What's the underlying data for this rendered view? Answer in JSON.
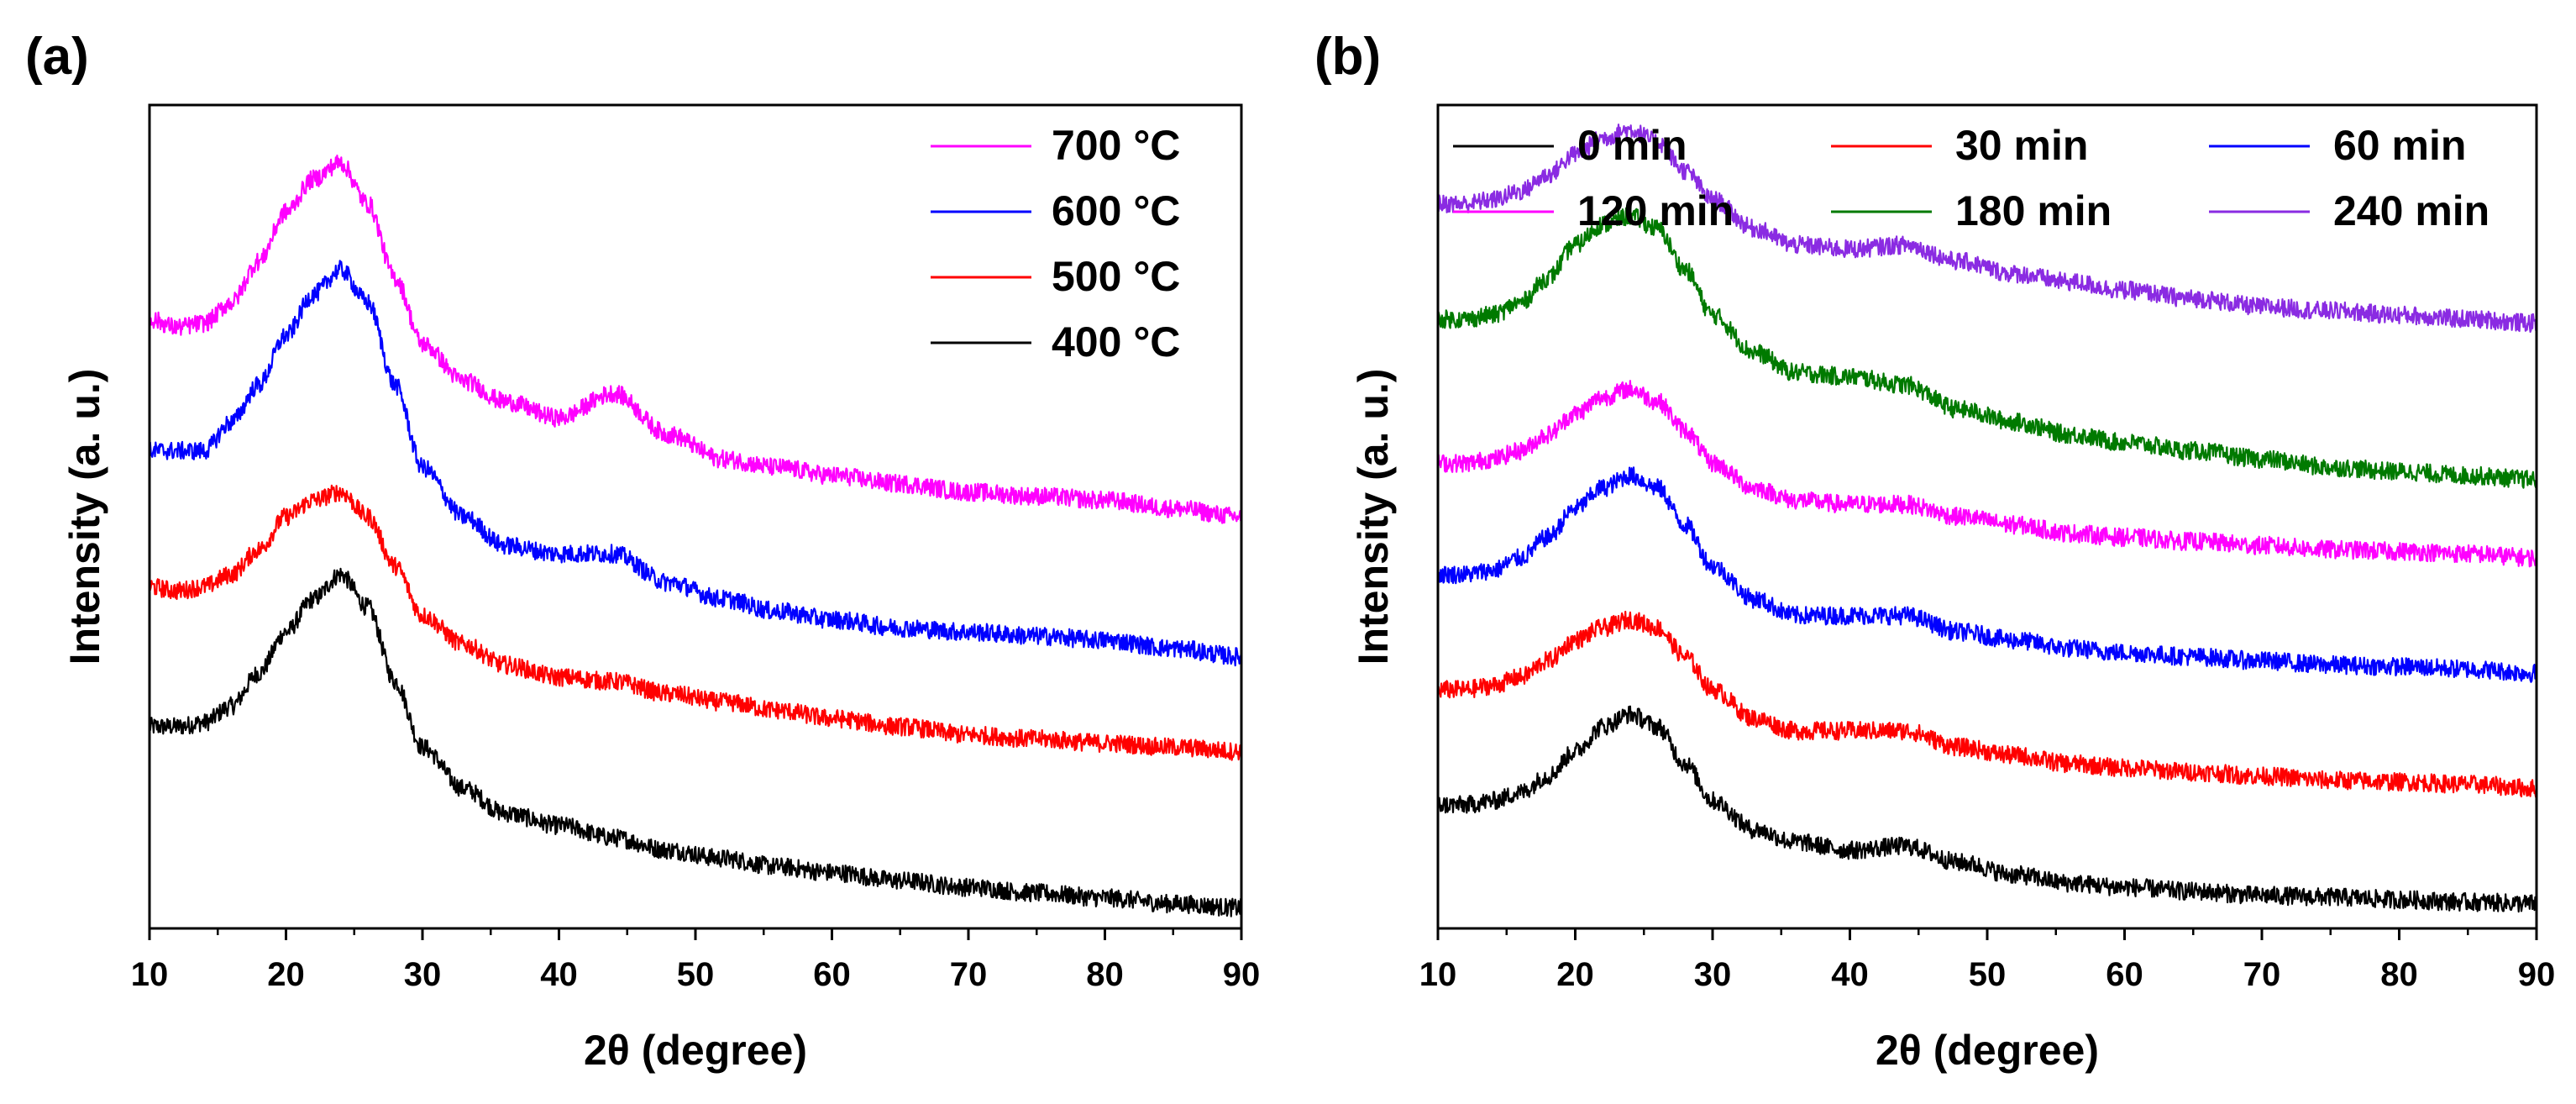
{
  "chart_data": [
    {
      "panel_label": "(a)",
      "type": "line",
      "title": "",
      "xlabel": "2θ (degree)",
      "ylabel": "Intensity (a. u.)",
      "xlim": [
        10,
        90
      ],
      "ylim": [
        0,
        1
      ],
      "xticks": [
        "10",
        "20",
        "30",
        "40",
        "50",
        "60",
        "70",
        "80",
        "90"
      ],
      "yticks_visible": false,
      "grid": false,
      "legend": {
        "placement": "top-right",
        "columns": 1,
        "order": [
          "700 °C",
          "600 °C",
          "500 °C",
          "400 °C"
        ]
      },
      "series": [
        {
          "name": "400 °C",
          "color": "#000000",
          "x": [
            10,
            12,
            14,
            16,
            18,
            20,
            22,
            24,
            26,
            28,
            30,
            33,
            36,
            40,
            44,
            48,
            52,
            56,
            60,
            65,
            70,
            75,
            80,
            85,
            90
          ],
          "y": [
            0.245,
            0.245,
            0.25,
            0.27,
            0.31,
            0.36,
            0.4,
            0.43,
            0.39,
            0.3,
            0.22,
            0.17,
            0.14,
            0.125,
            0.11,
            0.095,
            0.085,
            0.075,
            0.068,
            0.058,
            0.05,
            0.043,
            0.037,
            0.03,
            0.025
          ]
        },
        {
          "name": "500 °C",
          "color": "#ff0000",
          "x": [
            10,
            12,
            14,
            16,
            18,
            20,
            22,
            24,
            26,
            28,
            30,
            33,
            36,
            40,
            44,
            48,
            52,
            56,
            60,
            65,
            70,
            75,
            80,
            85,
            90
          ],
          "y": [
            0.415,
            0.41,
            0.415,
            0.43,
            0.46,
            0.5,
            0.52,
            0.53,
            0.5,
            0.44,
            0.38,
            0.345,
            0.32,
            0.305,
            0.3,
            0.285,
            0.275,
            0.265,
            0.255,
            0.245,
            0.235,
            0.23,
            0.225,
            0.22,
            0.215
          ]
        },
        {
          "name": "600 °C",
          "color": "#0000ff",
          "x": [
            10,
            12,
            14,
            16,
            18,
            20,
            22,
            24,
            26,
            28,
            30,
            33,
            36,
            40,
            44,
            48,
            52,
            56,
            60,
            65,
            70,
            75,
            80,
            85,
            90
          ],
          "y": [
            0.58,
            0.58,
            0.58,
            0.615,
            0.66,
            0.72,
            0.77,
            0.8,
            0.76,
            0.66,
            0.56,
            0.5,
            0.465,
            0.455,
            0.455,
            0.42,
            0.4,
            0.385,
            0.375,
            0.365,
            0.36,
            0.355,
            0.35,
            0.34,
            0.33
          ]
        },
        {
          "name": "700 °C",
          "color": "#ff00ff",
          "x": [
            10,
            12,
            14,
            16,
            18,
            20,
            22,
            24,
            26,
            28,
            30,
            33,
            36,
            40,
            44,
            48,
            52,
            56,
            60,
            65,
            70,
            75,
            80,
            85,
            90
          ],
          "y": [
            0.74,
            0.73,
            0.735,
            0.76,
            0.81,
            0.87,
            0.91,
            0.93,
            0.88,
            0.79,
            0.71,
            0.665,
            0.64,
            0.62,
            0.65,
            0.6,
            0.57,
            0.56,
            0.55,
            0.54,
            0.53,
            0.525,
            0.52,
            0.51,
            0.5
          ]
        }
      ]
    },
    {
      "panel_label": "(b)",
      "type": "line",
      "title": "",
      "xlabel": "2θ (degree)",
      "ylabel": "Intensity (a. u.)",
      "xlim": [
        10,
        90
      ],
      "ylim": [
        0,
        1
      ],
      "xticks": [
        "10",
        "20",
        "30",
        "40",
        "50",
        "60",
        "70",
        "80",
        "90"
      ],
      "yticks_visible": false,
      "grid": false,
      "legend": {
        "placement": "top",
        "columns": 3,
        "order": [
          "0 min",
          "30 min",
          "60 min",
          "120 min",
          "180 min",
          "240 min"
        ]
      },
      "series": [
        {
          "name": "0 min",
          "color": "#000000",
          "x": [
            10,
            12,
            14,
            16,
            18,
            20,
            22,
            24,
            26,
            28,
            30,
            33,
            36,
            40,
            44,
            48,
            52,
            56,
            60,
            65,
            70,
            75,
            80,
            85,
            90
          ],
          "y": [
            0.15,
            0.15,
            0.155,
            0.165,
            0.185,
            0.215,
            0.245,
            0.26,
            0.245,
            0.2,
            0.155,
            0.12,
            0.105,
            0.095,
            0.1,
            0.08,
            0.065,
            0.055,
            0.05,
            0.045,
            0.04,
            0.038,
            0.035,
            0.032,
            0.03
          ]
        },
        {
          "name": "30 min",
          "color": "#ff0000",
          "x": [
            10,
            12,
            14,
            16,
            18,
            20,
            22,
            24,
            26,
            28,
            30,
            33,
            36,
            40,
            44,
            48,
            52,
            56,
            60,
            65,
            70,
            75,
            80,
            85,
            90
          ],
          "y": [
            0.29,
            0.29,
            0.295,
            0.305,
            0.325,
            0.35,
            0.365,
            0.375,
            0.365,
            0.33,
            0.29,
            0.255,
            0.24,
            0.24,
            0.24,
            0.22,
            0.21,
            0.2,
            0.195,
            0.19,
            0.185,
            0.18,
            0.178,
            0.175,
            0.17
          ]
        },
        {
          "name": "60 min",
          "color": "#0000ff",
          "x": [
            10,
            12,
            14,
            16,
            18,
            20,
            22,
            24,
            26,
            28,
            30,
            33,
            36,
            40,
            44,
            48,
            52,
            56,
            60,
            65,
            70,
            75,
            80,
            85,
            90
          ],
          "y": [
            0.43,
            0.43,
            0.435,
            0.45,
            0.475,
            0.51,
            0.535,
            0.55,
            0.535,
            0.49,
            0.44,
            0.4,
            0.38,
            0.38,
            0.38,
            0.36,
            0.35,
            0.34,
            0.335,
            0.33,
            0.325,
            0.32,
            0.318,
            0.315,
            0.31
          ]
        },
        {
          "name": "120 min",
          "color": "#ff00ff",
          "x": [
            10,
            12,
            14,
            16,
            18,
            20,
            22,
            24,
            26,
            28,
            30,
            33,
            36,
            40,
            44,
            48,
            52,
            56,
            60,
            65,
            70,
            75,
            80,
            85,
            90
          ],
          "y": [
            0.565,
            0.565,
            0.57,
            0.58,
            0.6,
            0.625,
            0.645,
            0.655,
            0.64,
            0.605,
            0.565,
            0.535,
            0.52,
            0.515,
            0.515,
            0.5,
            0.49,
            0.48,
            0.475,
            0.47,
            0.465,
            0.46,
            0.458,
            0.455,
            0.45
          ]
        },
        {
          "name": "180 min",
          "color": "#007a00",
          "x": [
            10,
            12,
            14,
            16,
            18,
            20,
            22,
            24,
            26,
            28,
            30,
            33,
            36,
            40,
            44,
            48,
            52,
            56,
            60,
            65,
            70,
            75,
            80,
            85,
            90
          ],
          "y": [
            0.74,
            0.74,
            0.745,
            0.76,
            0.79,
            0.83,
            0.855,
            0.865,
            0.85,
            0.8,
            0.745,
            0.7,
            0.675,
            0.67,
            0.66,
            0.63,
            0.615,
            0.6,
            0.59,
            0.58,
            0.57,
            0.56,
            0.555,
            0.55,
            0.545
          ]
        },
        {
          "name": "240 min",
          "color": "#8a2be2",
          "x": [
            10,
            12,
            14,
            16,
            18,
            20,
            22,
            24,
            26,
            28,
            30,
            33,
            36,
            40,
            44,
            48,
            52,
            56,
            60,
            65,
            70,
            75,
            80,
            85,
            90
          ],
          "y": [
            0.88,
            0.88,
            0.885,
            0.895,
            0.915,
            0.94,
            0.96,
            0.97,
            0.955,
            0.92,
            0.885,
            0.85,
            0.83,
            0.825,
            0.83,
            0.81,
            0.795,
            0.785,
            0.775,
            0.765,
            0.755,
            0.75,
            0.745,
            0.74,
            0.735
          ]
        }
      ]
    }
  ]
}
